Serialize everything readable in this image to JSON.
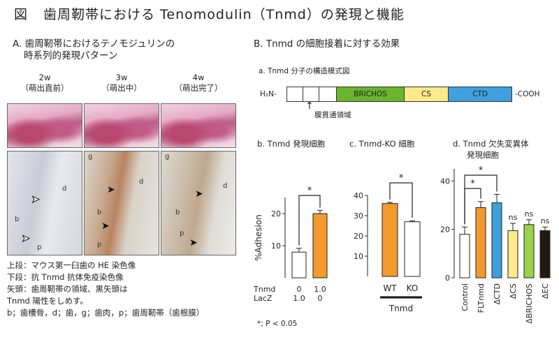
{
  "title": {
    "fig": "図",
    "text": "歯周靭帯における Tenomodulin（Tnmd）の発現と機能"
  },
  "panelA": {
    "heading_line1": "A. 歯周靭帯におけるテノモジュリンの",
    "heading_line2": "時系列的発現パターン",
    "columns": [
      {
        "week": "2w",
        "stage": "（萌出直前）"
      },
      {
        "week": "3w",
        "stage": "（萌出中）"
      },
      {
        "week": "4w",
        "stage": "（萌出完了）"
      }
    ],
    "labels": {
      "c1": [
        "d",
        "b",
        "p"
      ],
      "c2": [
        "g",
        "d",
        "b",
        "p"
      ],
      "c3": [
        "g",
        "d",
        "b",
        "p"
      ]
    },
    "legend": [
      "上段：マウス第一臼歯の HE 染色像",
      "下段：抗 Tnmd 抗体免疫染色像",
      "矢頭：歯周靭帯の領域、黒矢頭は",
      "Tnmd 陽性をしめす。",
      "b；歯槽骨，d；歯，g；歯肉，p；歯周靭帯（歯根膜）"
    ]
  },
  "panelB": {
    "heading": "B. Tnmd の細胞接着に対する効果",
    "sub_a": "a. Tnmd 分子の構造模式図",
    "structure": {
      "n_term": "H₂N-",
      "c_term": "-COOH",
      "domains": [
        {
          "label": "BRICHOS",
          "color": "#6ab52e"
        },
        {
          "label": "CS",
          "color": "#ffe98a"
        },
        {
          "label": "CTD",
          "color": "#3fa0de"
        }
      ],
      "tm_label": "膜貫通領域"
    },
    "sub_b": "b. Tnmd 発現細胞",
    "sub_c": "c. Tnmd-KO 細胞",
    "sub_d": "d. Tnmd 欠失変異体",
    "sub_d2": "発現細胞",
    "note": "*; P < 0.05"
  },
  "chart_data": [
    {
      "type": "bar",
      "ylabel": "%Adhesion",
      "ylim": [
        0,
        25
      ],
      "yticks": [
        10,
        20
      ],
      "rows": [
        {
          "name": "Tnmd",
          "values": [
            "0",
            "1.0"
          ]
        },
        {
          "name": "LacZ",
          "values": [
            "1.0",
            "0"
          ]
        }
      ],
      "values": [
        8,
        20
      ],
      "errors": [
        1.2,
        1.0
      ],
      "colors": [
        "#ffffff",
        "#f39a2e"
      ],
      "significance": [
        {
          "pair": [
            0,
            1
          ],
          "label": "*"
        }
      ]
    },
    {
      "type": "bar",
      "categories": [
        "WT",
        "KO"
      ],
      "xlabel": "Tnmd",
      "ylim": [
        0,
        40
      ],
      "yticks": [
        10,
        20,
        30,
        40
      ],
      "values": [
        36,
        27
      ],
      "errors": [
        0.6,
        0.5
      ],
      "colors": [
        "#f39a2e",
        "#ffffff"
      ],
      "significance": [
        {
          "pair": [
            0,
            1
          ],
          "label": "*"
        }
      ]
    },
    {
      "type": "bar",
      "categories": [
        "Control",
        "FLTnmd",
        "ΔCTD",
        "ΔCS",
        "ΔBRICHOS",
        "ΔEC"
      ],
      "ylim": [
        0,
        45
      ],
      "yticks": [
        0,
        20,
        40
      ],
      "values": [
        18,
        29,
        31,
        19.5,
        22,
        19.5
      ],
      "errors": [
        3,
        2.5,
        3.5,
        3,
        2,
        1.5
      ],
      "colors": [
        "#ffffff",
        "#f39a2e",
        "#3fa0de",
        "#ffe98a",
        "#9cd14a",
        "#231815"
      ],
      "annotations": [
        "",
        "",
        "",
        "ns",
        "ns",
        "ns"
      ],
      "significance": [
        {
          "pair": [
            0,
            1
          ],
          "label": "*"
        },
        {
          "pair": [
            0,
            2
          ],
          "label": "*"
        }
      ]
    }
  ]
}
